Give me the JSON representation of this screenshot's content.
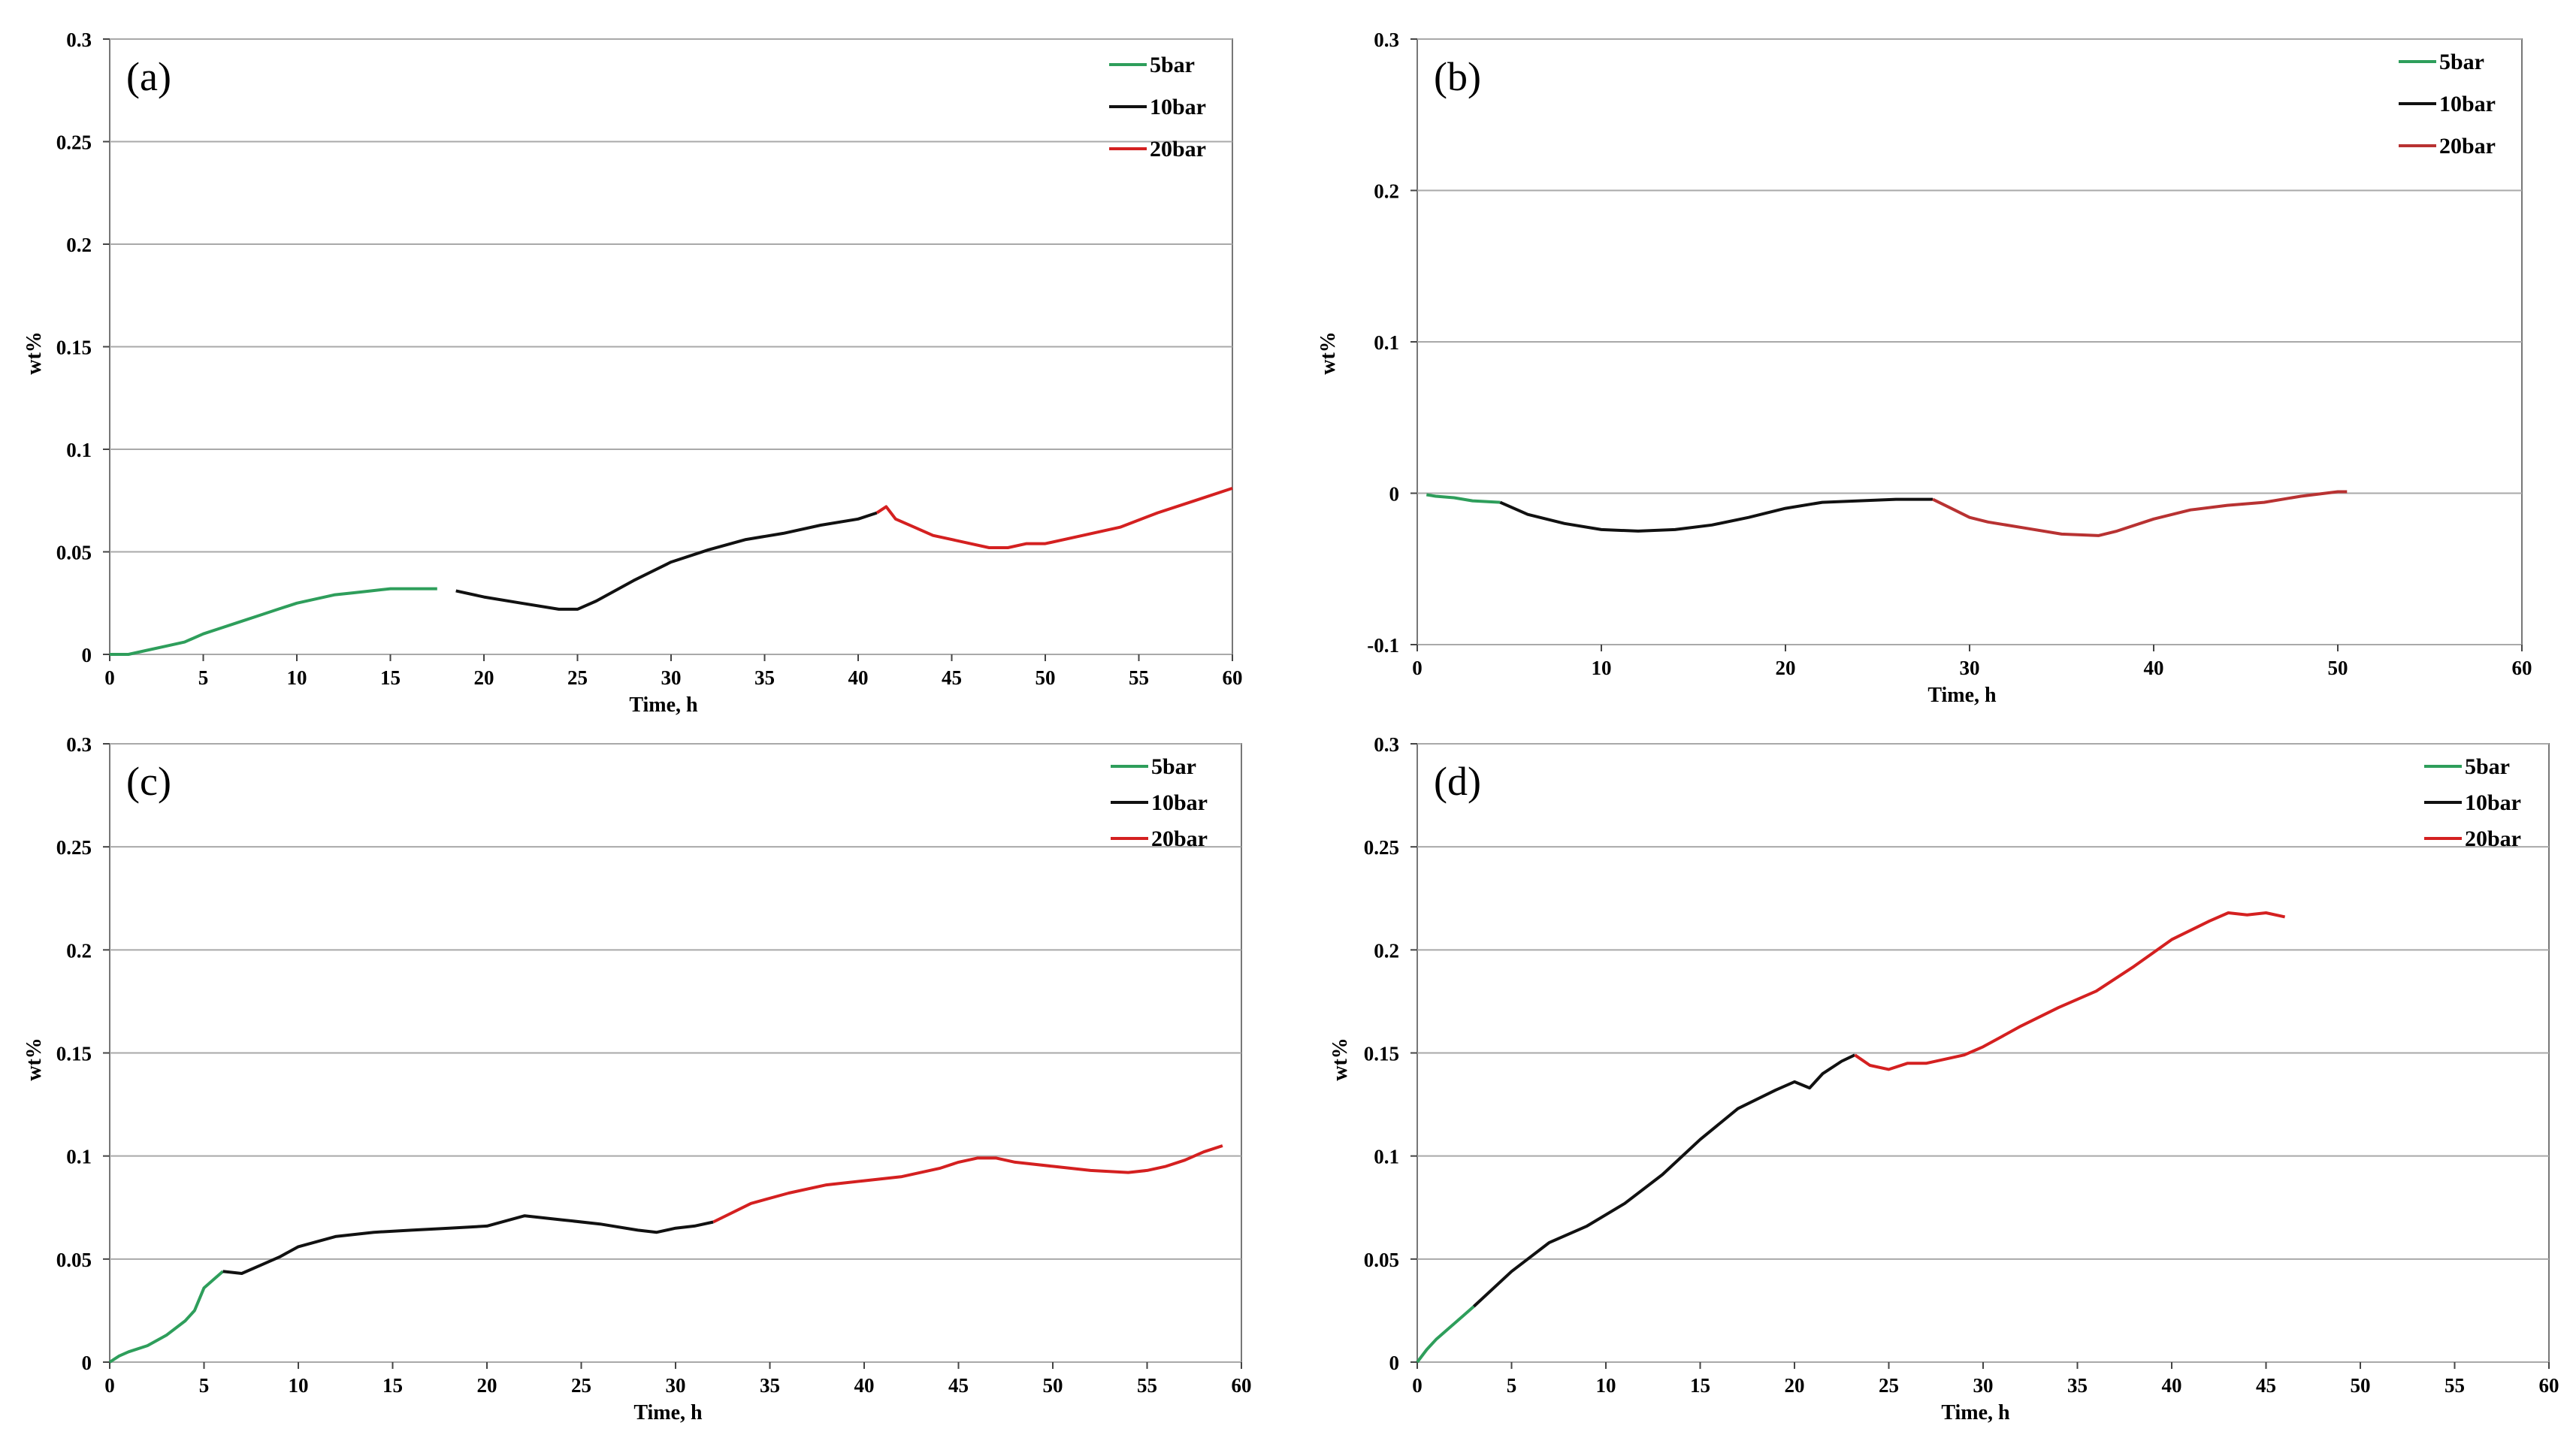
{
  "figure": {
    "colors": {
      "5bar": "#2e9e5b",
      "10bar": "#111111",
      "20bar": "#d42020",
      "20bar_b": "#b83232",
      "grid": "#a9a9a9",
      "axis": "#777777"
    }
  },
  "chart_data": [
    {
      "type": "line",
      "panel_label": "(a)",
      "xlabel": "Time, h",
      "ylabel": "wt%",
      "xlim": [
        0,
        60
      ],
      "ylim": [
        0,
        0.3
      ],
      "xticks": [
        "0",
        "5",
        "10",
        "15",
        "20",
        "25",
        "30",
        "35",
        "40",
        "45",
        "50",
        "55",
        "60"
      ],
      "yticks": [
        "0",
        "0.05",
        "0.1",
        "0.15",
        "0.2",
        "0.25",
        "0.3"
      ],
      "legend": [
        "5bar",
        "10bar",
        "20bar"
      ],
      "series": [
        {
          "name": "5bar",
          "x": [
            0,
            1,
            2,
            3,
            4,
            5,
            6,
            7,
            8,
            9,
            10,
            11,
            12,
            13,
            14,
            15,
            16,
            17.5
          ],
          "y": [
            0,
            0,
            0.002,
            0.004,
            0.006,
            0.01,
            0.013,
            0.016,
            0.019,
            0.022,
            0.025,
            0.027,
            0.029,
            0.03,
            0.031,
            0.032,
            0.032,
            0.032
          ]
        },
        {
          "name": "10bar",
          "x": [
            18.5,
            20,
            22,
            24,
            25,
            26,
            28,
            30,
            32,
            34,
            36,
            38,
            40,
            41
          ],
          "y": [
            0.031,
            0.028,
            0.025,
            0.022,
            0.022,
            0.026,
            0.036,
            0.045,
            0.051,
            0.056,
            0.059,
            0.063,
            0.066,
            0.069
          ]
        },
        {
          "name": "20bar",
          "x": [
            41,
            41.5,
            42,
            43,
            44,
            45,
            46,
            47,
            48,
            49,
            50,
            52,
            54,
            56,
            58,
            60
          ],
          "y": [
            0.069,
            0.072,
            0.066,
            0.062,
            0.058,
            0.056,
            0.054,
            0.052,
            0.052,
            0.054,
            0.054,
            0.058,
            0.062,
            0.069,
            0.075,
            0.081
          ]
        }
      ]
    },
    {
      "type": "line",
      "panel_label": "(b)",
      "xlabel": "Time, h",
      "ylabel": "wt%",
      "xlim": [
        0,
        60
      ],
      "ylim": [
        -0.1,
        0.3
      ],
      "xticks": [
        "0",
        "10",
        "20",
        "30",
        "40",
        "50",
        "60"
      ],
      "yticks": [
        "-0.1",
        "0",
        "0.1",
        "0.2",
        "0.3"
      ],
      "legend": [
        "5bar",
        "10bar",
        "20bar"
      ],
      "series": [
        {
          "name": "5bar",
          "x": [
            0.5,
            1,
            2,
            3,
            4.5
          ],
          "y": [
            -0.001,
            -0.002,
            -0.003,
            -0.005,
            -0.006
          ]
        },
        {
          "name": "10bar",
          "x": [
            4.5,
            6,
            8,
            10,
            12,
            14,
            16,
            18,
            20,
            22,
            24,
            26,
            28
          ],
          "y": [
            -0.006,
            -0.014,
            -0.02,
            -0.024,
            -0.025,
            -0.024,
            -0.021,
            -0.016,
            -0.01,
            -0.006,
            -0.005,
            -0.004,
            -0.004
          ]
        },
        {
          "name": "20bar",
          "x": [
            28,
            29,
            30,
            31,
            33,
            35,
            37,
            38,
            40,
            42,
            44,
            46,
            48,
            50,
            50.5
          ],
          "y": [
            -0.004,
            -0.01,
            -0.016,
            -0.019,
            -0.023,
            -0.027,
            -0.028,
            -0.025,
            -0.017,
            -0.011,
            -0.008,
            -0.006,
            -0.002,
            0.001,
            0.001
          ]
        }
      ]
    },
    {
      "type": "line",
      "panel_label": "(c)",
      "xlabel": "Time, h",
      "ylabel": "wt%",
      "xlim": [
        0,
        60
      ],
      "ylim": [
        0,
        0.3
      ],
      "xticks": [
        "0",
        "5",
        "10",
        "15",
        "20",
        "25",
        "30",
        "35",
        "40",
        "45",
        "50",
        "55",
        "60"
      ],
      "yticks": [
        "0",
        "0.05",
        "0.1",
        "0.15",
        "0.2",
        "0.25",
        "0.3"
      ],
      "legend": [
        "5bar",
        "10bar",
        "20bar"
      ],
      "series": [
        {
          "name": "5bar",
          "x": [
            0,
            0.5,
            1,
            2,
            3,
            4,
            4.5,
            5,
            5.5,
            6
          ],
          "y": [
            0,
            0.003,
            0.005,
            0.008,
            0.013,
            0.02,
            0.025,
            0.036,
            0.04,
            0.044
          ]
        },
        {
          "name": "10bar",
          "x": [
            6,
            7,
            8,
            9,
            10,
            12,
            14,
            16,
            18,
            20,
            22,
            24,
            26,
            28,
            29,
            30,
            31,
            32
          ],
          "y": [
            0.044,
            0.043,
            0.047,
            0.051,
            0.056,
            0.061,
            0.063,
            0.064,
            0.065,
            0.066,
            0.071,
            0.069,
            0.067,
            0.064,
            0.063,
            0.065,
            0.066,
            0.068
          ]
        },
        {
          "name": "20bar",
          "x": [
            32,
            34,
            36,
            38,
            40,
            42,
            44,
            45,
            46,
            47,
            48,
            50,
            52,
            54,
            55,
            56,
            57,
            58,
            59
          ],
          "y": [
            0.068,
            0.077,
            0.082,
            0.086,
            0.088,
            0.09,
            0.094,
            0.097,
            0.099,
            0.099,
            0.097,
            0.095,
            0.093,
            0.092,
            0.093,
            0.095,
            0.098,
            0.102,
            0.105
          ]
        }
      ]
    },
    {
      "type": "line",
      "panel_label": "(d)",
      "xlabel": "Time, h",
      "ylabel": "wt%",
      "xlim": [
        0,
        60
      ],
      "ylim": [
        0,
        0.3
      ],
      "xticks": [
        "0",
        "5",
        "10",
        "15",
        "20",
        "25",
        "30",
        "35",
        "40",
        "45",
        "50",
        "55",
        "60"
      ],
      "yticks": [
        "0",
        "0.05",
        "0.1",
        "0.15",
        "0.2",
        "0.25",
        "0.3"
      ],
      "legend": [
        "5bar",
        "10bar",
        "20bar"
      ],
      "series": [
        {
          "name": "5bar",
          "x": [
            0,
            0.5,
            1,
            1.5,
            2,
            2.5,
            3
          ],
          "y": [
            0,
            0.006,
            0.011,
            0.015,
            0.019,
            0.023,
            0.027
          ]
        },
        {
          "name": "10bar",
          "x": [
            3,
            5,
            7,
            9,
            11,
            13,
            15,
            17,
            19,
            20,
            20.8,
            21.5,
            22.5,
            23.2
          ],
          "y": [
            0.027,
            0.044,
            0.058,
            0.066,
            0.077,
            0.091,
            0.108,
            0.123,
            0.132,
            0.136,
            0.133,
            0.14,
            0.146,
            0.149
          ]
        },
        {
          "name": "20bar",
          "x": [
            23.2,
            24,
            25,
            26,
            27,
            28,
            29,
            30,
            31,
            32,
            34,
            36,
            38,
            40,
            42,
            43,
            44,
            45,
            46
          ],
          "y": [
            0.149,
            0.144,
            0.142,
            0.145,
            0.145,
            0.147,
            0.149,
            0.153,
            0.158,
            0.163,
            0.172,
            0.18,
            0.192,
            0.205,
            0.214,
            0.218,
            0.217,
            0.218,
            0.216
          ]
        }
      ]
    }
  ]
}
